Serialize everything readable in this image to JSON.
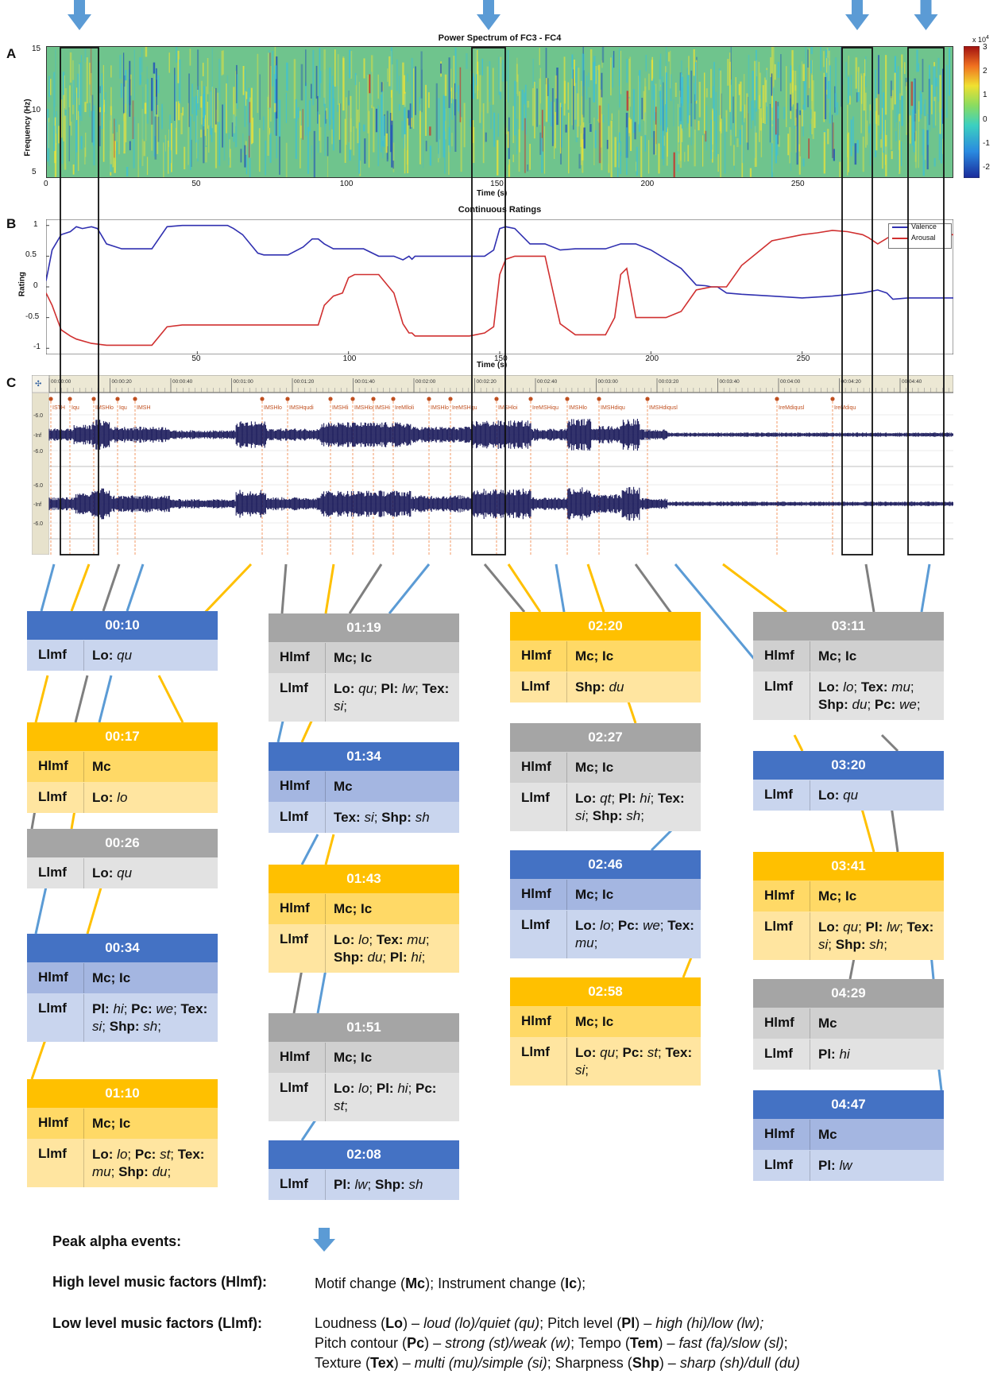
{
  "panels": {
    "a": "A",
    "b": "B",
    "c": "C"
  },
  "spectrum": {
    "title": "Power Spectrum of FC3 - FC4",
    "ylabel": "Frequency (Hz)",
    "xlabel": "Time (s)",
    "yticks": [
      "15",
      "10",
      "5"
    ],
    "xticks": [
      "0",
      "50",
      "100",
      "150",
      "200",
      "250"
    ],
    "colorbar_exp": "x 10",
    "colorbar_exp_sup": "4",
    "colorbar_ticks": [
      "3",
      "2",
      "1",
      "0",
      "-1",
      "-2"
    ],
    "colors": {
      "base": "#6fc48d",
      "yellow": "#e8e23a",
      "cyan": "#3cc0d8",
      "blue": "#2050b8",
      "red": "#d42020"
    }
  },
  "chart_data": {
    "type": "line",
    "title": "Continuous Ratings",
    "xlabel": "Time (s)",
    "ylabel": "Rating",
    "xlim": [
      0,
      300
    ],
    "ylim": [
      -1.1,
      1.1
    ],
    "xticks": [
      "50",
      "100",
      "150",
      "200",
      "250"
    ],
    "yticks": [
      "1",
      "0.5",
      "0",
      "-0.5",
      "-1"
    ],
    "legend": "top-right",
    "series": [
      {
        "name": "Valence",
        "color": "#3030b0",
        "x": [
          0,
          2,
          5,
          8,
          10,
          12,
          15,
          17,
          20,
          25,
          30,
          35,
          40,
          45,
          55,
          60,
          62,
          65,
          70,
          72,
          75,
          80,
          85,
          88,
          90,
          92,
          95,
          100,
          105,
          110,
          115,
          118,
          120,
          121,
          122,
          125,
          130,
          135,
          140,
          145,
          148,
          150,
          152,
          155,
          160,
          165,
          170,
          175,
          180,
          185,
          190,
          195,
          200,
          205,
          210,
          215,
          218,
          220,
          222,
          225,
          230,
          240,
          250,
          260,
          270,
          275,
          278,
          280,
          285,
          290,
          300
        ],
        "y": [
          0.1,
          0.6,
          0.85,
          0.9,
          0.98,
          0.95,
          0.98,
          0.95,
          0.7,
          0.62,
          0.62,
          0.62,
          0.98,
          1.0,
          1.0,
          1.0,
          0.95,
          0.85,
          0.55,
          0.52,
          0.52,
          0.52,
          0.65,
          0.78,
          0.78,
          0.7,
          0.62,
          0.62,
          0.62,
          0.5,
          0.5,
          0.44,
          0.5,
          0.45,
          0.5,
          0.5,
          0.5,
          0.5,
          0.5,
          0.5,
          0.6,
          0.95,
          0.98,
          0.95,
          0.7,
          0.7,
          0.6,
          0.62,
          0.62,
          0.62,
          0.7,
          0.7,
          0.6,
          0.45,
          0.3,
          0.03,
          0.02,
          0.0,
          0.0,
          -0.1,
          -0.12,
          -0.15,
          -0.18,
          -0.15,
          -0.1,
          -0.05,
          -0.1,
          -0.2,
          -0.18,
          -0.18,
          -0.18
        ]
      },
      {
        "name": "Arousal",
        "color": "#d03030",
        "x": [
          0,
          2,
          5,
          8,
          10,
          15,
          20,
          25,
          30,
          35,
          40,
          45,
          50,
          55,
          60,
          70,
          80,
          85,
          90,
          92,
          95,
          98,
          100,
          102,
          105,
          110,
          115,
          118,
          120,
          121,
          122,
          125,
          130,
          135,
          140,
          145,
          148,
          150,
          152,
          155,
          160,
          165,
          170,
          175,
          180,
          185,
          188,
          190,
          192,
          195,
          200,
          205,
          210,
          215,
          220,
          222,
          225,
          230,
          235,
          240,
          250,
          255,
          260,
          265,
          270,
          272,
          275,
          280,
          285,
          290,
          300
        ],
        "y": [
          -0.1,
          -0.3,
          -0.7,
          -0.8,
          -0.85,
          -0.92,
          -0.95,
          -0.95,
          -0.95,
          -0.95,
          -0.65,
          -0.62,
          -0.62,
          -0.62,
          -0.62,
          -0.62,
          -0.62,
          -0.62,
          -0.62,
          -0.3,
          -0.15,
          -0.1,
          0.15,
          0.2,
          0.2,
          0.2,
          -0.1,
          -0.6,
          -0.75,
          -0.75,
          -0.8,
          -0.8,
          -0.8,
          -0.8,
          -0.8,
          -0.75,
          -0.65,
          0.2,
          0.45,
          0.5,
          0.5,
          0.5,
          -0.6,
          -0.78,
          -0.78,
          -0.78,
          -0.5,
          0.2,
          0.3,
          -0.5,
          -0.5,
          -0.5,
          -0.4,
          -0.05,
          0.0,
          0.0,
          0.0,
          0.35,
          0.55,
          0.75,
          0.85,
          0.88,
          0.92,
          0.9,
          0.85,
          0.8,
          0.7,
          0.85,
          0.82,
          0.85,
          0.85
        ]
      }
    ]
  },
  "waveform": {
    "timecodes": [
      "00:00:00",
      "00:00:20",
      "00:00:40",
      "00:01:00",
      "00:01:20",
      "00:01:40",
      "00:02:00",
      "00:02:20",
      "00:02:40",
      "00:03:00",
      "00:03:20",
      "00:03:40",
      "00:04:00",
      "00:04:20",
      "00:04:40"
    ],
    "markers": [
      "ISTH",
      "Iqu",
      "IMSHlo",
      "Iqu",
      "IMSH",
      "IMSHlo",
      "IMSHqudi",
      "IMSHli",
      "IMSHloi",
      "IMSHi",
      "IreMlloli",
      "IMSHlo",
      "IreMSHqu",
      "IMSHloi",
      "IreMSHiqu",
      "IMSHlo",
      "IMSHdiqu",
      "IMSHdiqusl",
      "IreMdiqusl",
      "IreMdiqu"
    ],
    "scale_labels": [
      "-6.0",
      "-Inf",
      "-6.0",
      "-6.0",
      "-Inf",
      "-6.0"
    ],
    "color": "#1c1c5c"
  },
  "cards": [
    {
      "time": "00:10",
      "rows": [
        {
          "k": "Llmf",
          "v": [
            [
              "Lo:",
              "qu"
            ]
          ]
        }
      ]
    },
    {
      "time": "00:17",
      "rows": [
        {
          "k": "Hlmf",
          "plain": "Mc"
        },
        {
          "k": "Llmf",
          "v": [
            [
              "Lo:",
              "lo"
            ]
          ]
        }
      ]
    },
    {
      "time": "00:26",
      "rows": [
        {
          "k": "Llmf",
          "v": [
            [
              "Lo:",
              "qu"
            ]
          ]
        }
      ]
    },
    {
      "time": "00:34",
      "rows": [
        {
          "k": "Hlmf",
          "plain": "Mc; Ic"
        },
        {
          "k": "Llmf",
          "v": [
            [
              "Pl:",
              "hi"
            ],
            [
              "Pc:",
              "we"
            ],
            [
              "Tex:",
              "si"
            ],
            [
              "Shp:",
              "sh"
            ]
          ]
        }
      ]
    },
    {
      "time": "01:10",
      "rows": [
        {
          "k": "Hlmf",
          "plain": "Mc; Ic"
        },
        {
          "k": "Llmf",
          "v": [
            [
              "Lo:",
              "lo"
            ],
            [
              "Pc:",
              "st"
            ],
            [
              "Tex:",
              "mu"
            ],
            [
              "Shp:",
              "du"
            ]
          ]
        }
      ]
    },
    {
      "time": "01:19",
      "rows": [
        {
          "k": "Hlmf",
          "plain": "Mc; Ic"
        },
        {
          "k": "Llmf",
          "v": [
            [
              "Lo:",
              "qu"
            ],
            [
              "Pl:",
              "lw"
            ],
            [
              "Tex:",
              "si"
            ]
          ]
        }
      ]
    },
    {
      "time": "01:34",
      "rows": [
        {
          "k": "Hlmf",
          "plain": "Mc"
        },
        {
          "k": "Llmf",
          "v": [
            [
              "Tex:",
              "si"
            ],
            [
              "Shp:",
              "sh"
            ]
          ]
        }
      ]
    },
    {
      "time": "01:43",
      "rows": [
        {
          "k": "Hlmf",
          "plain": "Mc; Ic"
        },
        {
          "k": "Llmf",
          "v": [
            [
              "Lo:",
              "lo"
            ],
            [
              "Tex:",
              "mu"
            ],
            [
              "Shp:",
              "du"
            ],
            [
              "Pl:",
              "hi"
            ]
          ]
        }
      ]
    },
    {
      "time": "01:51",
      "rows": [
        {
          "k": "Hlmf",
          "plain": "Mc; Ic"
        },
        {
          "k": "Llmf",
          "v": [
            [
              "Lo:",
              "lo"
            ],
            [
              "Pl:",
              "hi"
            ],
            [
              "Pc:",
              "st"
            ]
          ]
        }
      ]
    },
    {
      "time": "02:08",
      "rows": [
        {
          "k": "Llmf",
          "v": [
            [
              "Pl:",
              "lw"
            ],
            [
              "Shp:",
              "sh"
            ]
          ]
        }
      ]
    },
    {
      "time": "02:20",
      "rows": [
        {
          "k": "Hlmf",
          "plain": "Mc; Ic"
        },
        {
          "k": "Llmf",
          "v": [
            [
              "Shp:",
              "du"
            ]
          ]
        }
      ]
    },
    {
      "time": "02:27",
      "rows": [
        {
          "k": "Hlmf",
          "plain": "Mc; Ic"
        },
        {
          "k": "Llmf",
          "v": [
            [
              "Lo:",
              "qt"
            ],
            [
              "Pl:",
              "hi"
            ],
            [
              "Tex:",
              "si"
            ],
            [
              "Shp:",
              "sh"
            ]
          ]
        }
      ]
    },
    {
      "time": "02:46",
      "rows": [
        {
          "k": "Hlmf",
          "plain": "Mc; Ic"
        },
        {
          "k": "Llmf",
          "v": [
            [
              "Lo:",
              "lo"
            ],
            [
              "Pc:",
              "we"
            ],
            [
              "Tex:",
              "mu"
            ]
          ]
        }
      ]
    },
    {
      "time": "02:58",
      "rows": [
        {
          "k": "Hlmf",
          "plain": "Mc; Ic"
        },
        {
          "k": "Llmf",
          "v": [
            [
              "Lo:",
              "qu"
            ],
            [
              "Pc:",
              "st"
            ],
            [
              "Tex:",
              "si"
            ]
          ]
        }
      ]
    },
    {
      "time": "03:11",
      "rows": [
        {
          "k": "Hlmf",
          "plain": "Mc; Ic"
        },
        {
          "k": "Llmf",
          "v": [
            [
              "Lo:",
              "lo"
            ],
            [
              "Tex:",
              "mu"
            ],
            [
              "Shp:",
              "du"
            ],
            [
              "Pc:",
              "we"
            ]
          ]
        }
      ]
    },
    {
      "time": "03:20",
      "rows": [
        {
          "k": "Llmf",
          "v": [
            [
              "Lo:",
              "qu"
            ]
          ]
        }
      ]
    },
    {
      "time": "03:41",
      "rows": [
        {
          "k": "Hlmf",
          "plain": "Mc; Ic"
        },
        {
          "k": "Llmf",
          "v": [
            [
              "Lo:",
              "qu"
            ],
            [
              "Pl:",
              "lw"
            ],
            [
              "Tex:",
              "si"
            ],
            [
              "Shp:",
              "sh"
            ]
          ]
        }
      ]
    },
    {
      "time": "04:29",
      "rows": [
        {
          "k": "Hlmf",
          "plain": "Mc"
        },
        {
          "k": "Llmf",
          "v": [
            [
              "Pl:",
              "hi"
            ]
          ]
        }
      ]
    },
    {
      "time": "04:47",
      "rows": [
        {
          "k": "Hlmf",
          "plain": "Mc"
        },
        {
          "k": "Llmf",
          "v": [
            [
              "Pl:",
              "lw"
            ]
          ]
        }
      ]
    }
  ],
  "legend": {
    "peak": "Peak alpha events:",
    "high_key": "High level music factors (Hlmf):",
    "high_val_html": "Motif change (<b>Mc</b>); Instrument change (<b>Ic</b>);",
    "low_key": "Low level music factors (Llmf):",
    "low_lines_html": [
      "Loudness (<b>Lo</b>) – <i>loud (lo)/quiet (qu)</i>; Pitch level (<b>Pl</b>) – <i>high (hi)/low (lw);</i>",
      "Pitch contour (<b>Pc</b>) – <i>strong (st)/weak (w)</i>; Tempo (<b>Tem</b>) – <i>fast (fa)/slow (sl)</i>;",
      "Texture (<b>Tex</b>) – <i>multi (mu)/simple (si)</i>; Sharpness (<b>Shp</b>) – <i>sharp (sh)/dull (du)</i>"
    ]
  }
}
